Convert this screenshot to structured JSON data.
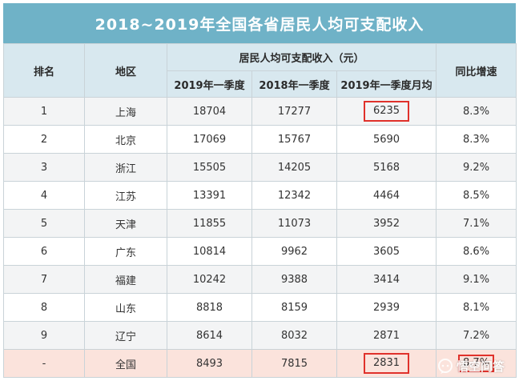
{
  "title": "2018~2019年全国各省居民人均可支配收入",
  "headers": {
    "rank": "排名",
    "region": "地区",
    "income_group": "居民人均可支配收入（元）",
    "q1_2019": "2019年一季度",
    "q1_2018": "2018年一季度",
    "q1_2019_monthly": "2019年一季度月均",
    "yoy": "同比增速"
  },
  "rows": [
    {
      "rank": "1",
      "region": "上海",
      "q1_2019": "18704",
      "q1_2018": "17277",
      "monthly": "6235",
      "yoy": "8.3%"
    },
    {
      "rank": "2",
      "region": "北京",
      "q1_2019": "17069",
      "q1_2018": "15767",
      "monthly": "5690",
      "yoy": "8.3%"
    },
    {
      "rank": "3",
      "region": "浙江",
      "q1_2019": "15505",
      "q1_2018": "14205",
      "monthly": "5168",
      "yoy": "9.2%"
    },
    {
      "rank": "4",
      "region": "江苏",
      "q1_2019": "13391",
      "q1_2018": "12342",
      "monthly": "4464",
      "yoy": "8.5%"
    },
    {
      "rank": "5",
      "region": "天津",
      "q1_2019": "11855",
      "q1_2018": "11073",
      "monthly": "3952",
      "yoy": "7.1%"
    },
    {
      "rank": "6",
      "region": "广东",
      "q1_2019": "10814",
      "q1_2018": "9962",
      "monthly": "3605",
      "yoy": "8.6%"
    },
    {
      "rank": "7",
      "region": "福建",
      "q1_2019": "10242",
      "q1_2018": "9388",
      "monthly": "3414",
      "yoy": "9.1%"
    },
    {
      "rank": "8",
      "region": "山东",
      "q1_2019": "8818",
      "q1_2018": "8159",
      "monthly": "2939",
      "yoy": "8.1%"
    },
    {
      "rank": "9",
      "region": "辽宁",
      "q1_2019": "8614",
      "q1_2018": "8032",
      "monthly": "2871",
      "yoy": "7.2%"
    }
  ],
  "national": {
    "rank": "-",
    "region": "全国",
    "q1_2019": "8493",
    "q1_2018": "7815",
    "monthly": "2831",
    "yoy": "8.7%"
  },
  "watermark": "悟空问答",
  "colors": {
    "title_bg": "#6fb2c7",
    "header_bg": "#d8e8ef",
    "highlight_border": "#e0312b",
    "national_bg": "#fbe3dc"
  }
}
